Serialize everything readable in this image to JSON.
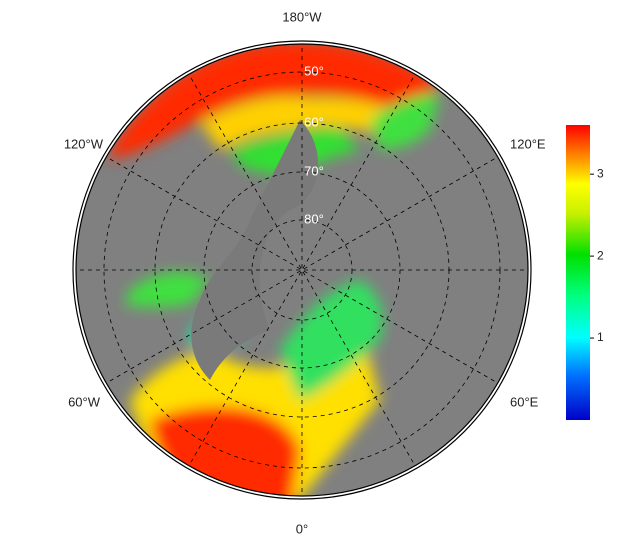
{
  "map": {
    "longitude_labels": [
      "180°W",
      "120°W",
      "120°E",
      "60°W",
      "60°E",
      "0°"
    ],
    "latitude_labels": [
      "50°",
      "60°",
      "70°",
      "80°"
    ]
  },
  "colorbar": {
    "lim": [
      0,
      3.6
    ],
    "ticks": [
      1,
      2,
      3
    ]
  }
}
